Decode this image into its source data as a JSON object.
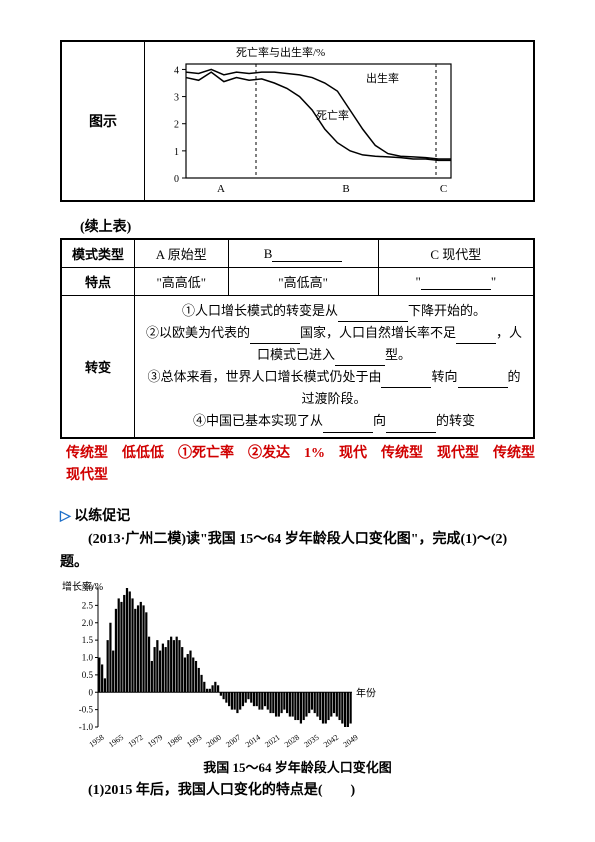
{
  "topChart": {
    "rowLabel": "图示",
    "yAxisLabel": "死亡率与出生率/%",
    "birthLabel": "出生率",
    "deathLabel": "死亡率",
    "yTicks": [
      0,
      1,
      2,
      3,
      4
    ],
    "xLabels": [
      "A",
      "B",
      "C"
    ],
    "xDividers": [
      70,
      250
    ],
    "birthRate": [
      3.9,
      3.85,
      4.0,
      3.8,
      3.9,
      3.85,
      3.9,
      3.9,
      3.85,
      3.8,
      3.7,
      3.5,
      3.2,
      2.5,
      1.8,
      1.2,
      0.9,
      0.8,
      0.78,
      0.75,
      0.7,
      0.7
    ],
    "deathRate": [
      3.7,
      3.6,
      3.9,
      3.55,
      3.7,
      3.6,
      3.65,
      3.5,
      3.3,
      3.0,
      2.5,
      1.8,
      1.3,
      1.0,
      0.85,
      0.8,
      0.78,
      0.75,
      0.7,
      0.7,
      0.65,
      0.65
    ],
    "lineWidth": 1.5,
    "plotColor": "#000",
    "bg": "#fff",
    "yMax": 4.2
  },
  "continueNote": "(续上表)",
  "table2": {
    "headerRow": "模式类型",
    "colA": "A 原始型",
    "colBPrefix": "B",
    "colC": "C 现代型",
    "featuresRow": "特点",
    "featA": "\"高高低\"",
    "featB": "\"高低高\"",
    "featCPrefix": "\"",
    "featCSuffix": "\"",
    "transformRow": "转变",
    "t1_pre": "①人口增长模式的转变是从",
    "t1_suf": "下降开始的。",
    "t2_pre": "②以欧美为代表的",
    "t2_mid1": "国家，人口自然增长率不足",
    "t2_mid2": "，人口模式已进入",
    "t2_suf": "型。",
    "t3_pre": "③总体来看，世界人口增长模式仍处于由",
    "t3_mid": "转向",
    "t3_suf": "的过渡阶段。",
    "t4_pre": "④中国已基本实现了从",
    "t4_mid": "向",
    "t4_suf": "的转变"
  },
  "answers": "传统型　低低低　①死亡率　②发达　1%　现代　传统型　现代型　传统型　现代型",
  "practice": {
    "marker": "▷",
    "title": "以练促记",
    "source": "(2013·广州二模)读\"我国 15～64 岁年龄段人口变化图\"，完成(1)～(2)题。",
    "q1": "(1)2015 年后，我国人口变化的特点是(　　)"
  },
  "barChart": {
    "yLabel": "增长率/%",
    "yTicks": [
      "3.0",
      "2.5",
      "2.0",
      "1.5",
      "1.0",
      "0.5",
      "0",
      "-0.5",
      "-1.0"
    ],
    "yValues": [
      3.0,
      2.5,
      2.0,
      1.5,
      1.0,
      0.5,
      0,
      -0.5,
      -1.0
    ],
    "xLabel": "年份",
    "xTicks": [
      "1958",
      "1965",
      "1972",
      "1979",
      "1986",
      "1993",
      "2000",
      "2007",
      "2014",
      "2021",
      "2028",
      "2035",
      "2042",
      "2049"
    ],
    "values": [
      1.0,
      0.8,
      0.4,
      1.5,
      2.0,
      1.2,
      2.4,
      2.7,
      2.6,
      2.8,
      3.0,
      2.9,
      2.7,
      2.4,
      2.5,
      2.6,
      2.5,
      2.3,
      1.6,
      0.9,
      1.3,
      1.5,
      1.2,
      1.4,
      1.3,
      1.5,
      1.6,
      1.5,
      1.6,
      1.5,
      1.3,
      1.0,
      1.1,
      1.2,
      1.0,
      0.9,
      0.7,
      0.5,
      0.3,
      0.1,
      0.1,
      0.2,
      0.3,
      0.2,
      -0.1,
      -0.2,
      -0.3,
      -0.4,
      -0.5,
      -0.5,
      -0.6,
      -0.5,
      -0.4,
      -0.3,
      -0.2,
      -0.3,
      -0.4,
      -0.4,
      -0.5,
      -0.5,
      -0.4,
      -0.5,
      -0.6,
      -0.6,
      -0.7,
      -0.7,
      -0.6,
      -0.5,
      -0.6,
      -0.7,
      -0.7,
      -0.8,
      -0.8,
      -0.9,
      -0.8,
      -0.7,
      -0.6,
      -0.5,
      -0.6,
      -0.7,
      -0.8,
      -0.9,
      -0.9,
      -0.8,
      -0.7,
      -0.6,
      -0.7,
      -0.8,
      -0.9,
      -1.0,
      -1.0,
      -0.9
    ],
    "barColor": "#000",
    "gridColor": "#000",
    "title": "我国 15～64 岁年龄段人口变化图"
  }
}
